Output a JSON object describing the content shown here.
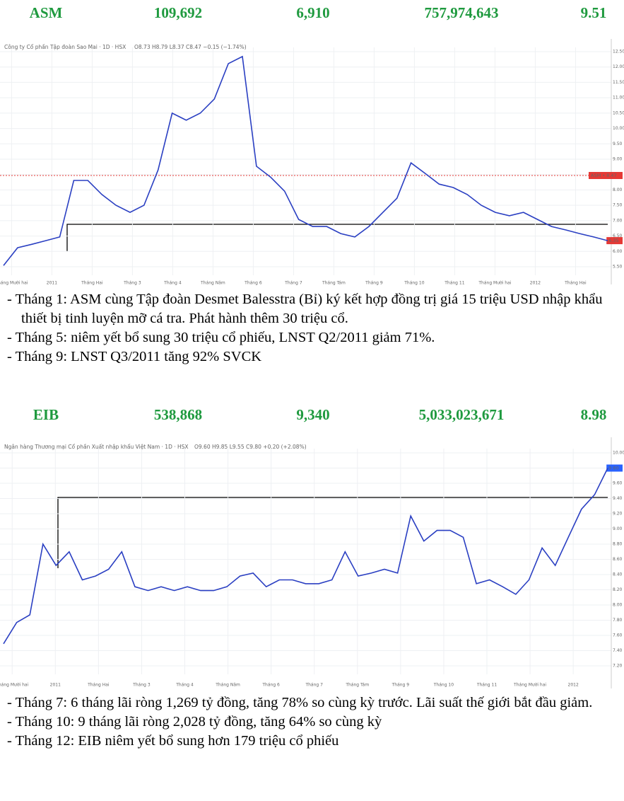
{
  "sections": [
    {
      "header": [
        "ASM",
        "109,692",
        "6,910",
        "757,974,643",
        "9.51"
      ],
      "chart": {
        "type": "line",
        "title": "Công ty Cổ phần Tập đoàn Sao Mai · 1D · HSX",
        "ohlc": "O8.73 H8.79 L8.37 C8.47 −0.15 (−1.74%)",
        "xlabels": [
          "Tháng Mười hai",
          "2011",
          "Tháng Hai",
          "Tháng 3",
          "Tháng 4",
          "Tháng Năm",
          "Tháng 6",
          "Tháng 7",
          "Tháng Tám",
          "Tháng 9",
          "Tháng 10",
          "Tháng 11",
          "Tháng Mười hai",
          "2012",
          "Tháng Hai"
        ],
        "series": [
          {
            "color": "#2a3fc2",
            "values": [
              5.54,
              6.12,
              6.23,
              6.35,
              6.47,
              8.31,
              8.31,
              7.85,
              7.5,
              7.27,
              7.5,
              8.65,
              10.5,
              10.27,
              10.5,
              10.96,
              12.11,
              12.34,
              8.77,
              8.42,
              7.96,
              7.04,
              6.81,
              6.81,
              6.58,
              6.47,
              6.81,
              7.27,
              7.73,
              8.88,
              8.54,
              8.19,
              8.08,
              7.85,
              7.5,
              7.27,
              7.16,
              7.27,
              7.04,
              6.81,
              6.7,
              6.58,
              6.47,
              6.35
            ]
          }
        ],
        "ylim": [
          5.5,
          12.5
        ],
        "yticks": [
          {
            "value": 5.5,
            "label": "5.50"
          },
          {
            "value": 6,
            "label": "6.00"
          },
          {
            "value": 6.5,
            "label": "6.50"
          },
          {
            "value": 7,
            "label": "7.00"
          },
          {
            "value": 7.5,
            "label": "7.50"
          },
          {
            "value": 8,
            "label": "8.00"
          },
          {
            "value": 8.5,
            "label": "8.50"
          },
          {
            "value": 9,
            "label": "9.00"
          },
          {
            "value": 9.5,
            "label": "9.50"
          },
          {
            "value": 10,
            "label": "10.00"
          },
          {
            "value": 10.5,
            "label": "10.50"
          },
          {
            "value": 11,
            "label": "11.00"
          },
          {
            "value": 11.5,
            "label": "11.50"
          },
          {
            "value": 12,
            "label": "12.00"
          },
          {
            "value": 12.5,
            "label": "12.50"
          }
        ],
        "markers": [
          {
            "value": 8.47,
            "label": "ASM • 8.47",
            "color": "#e53935"
          },
          {
            "value": 6.35,
            "label": "6.35",
            "color": "#e53935"
          }
        ]
      },
      "notes": [
        "- Tháng 1: ASM cùng Tập đoàn Desmet Balesstra (Bỉ) ký kết hợp đồng trị giá 15 triệu USD nhập khẩu thiết bị tinh luyện mỡ cá tra. Phát hành thêm 30 triệu cổ.",
        "- Tháng 5: niêm yết bổ sung 30 triệu cổ phiếu, LNST Q2/2011 giảm 71%.",
        "- Tháng 9: LNST Q3/2011 tăng 92% SVCK"
      ]
    },
    {
      "header": [
        "EIB",
        "538,868",
        "9,340",
        "5,033,023,671",
        "8.98"
      ],
      "chart": {
        "type": "line",
        "title": "Ngân hàng Thương mại Cổ phần Xuất nhập khẩu Việt Nam · 1D · HSX",
        "ohlc": "O9.60 H9.85 L9.55 C9.80 +0.20 (+2.08%)",
        "xlabels": [
          "Tháng Mười hai",
          "2011",
          "Tháng Hai",
          "Tháng 3",
          "Tháng 4",
          "Tháng Năm",
          "Tháng 6",
          "Tháng 7",
          "Tháng Tám",
          "Tháng 9",
          "Tháng 10",
          "Tháng 11",
          "Tháng Mười hai",
          "2012"
        ],
        "series": [
          {
            "color": "#2a3fc2",
            "values": [
              7.49,
              7.77,
              7.87,
              8.8,
              8.52,
              8.7,
              8.33,
              8.38,
              8.47,
              8.7,
              8.24,
              8.19,
              8.24,
              8.19,
              8.24,
              8.19,
              8.19,
              8.24,
              8.38,
              8.42,
              8.24,
              8.33,
              8.33,
              8.28,
              8.28,
              8.33,
              8.7,
              8.38,
              8.42,
              8.47,
              8.42,
              9.17,
              8.84,
              8.98,
              8.98,
              8.89,
              8.28,
              8.33,
              8.24,
              8.14,
              8.33,
              8.75,
              8.52,
              8.89,
              9.26,
              9.45,
              9.8
            ]
          }
        ],
        "ylim": [
          7.2,
          10
        ],
        "yticks": [
          {
            "value": 7.2,
            "label": "7.20"
          },
          {
            "value": 7.4,
            "label": "7.40"
          },
          {
            "value": 7.6,
            "label": "7.60"
          },
          {
            "value": 7.8,
            "label": "7.80"
          },
          {
            "value": 8,
            "label": "8.00"
          },
          {
            "value": 8.2,
            "label": "8.20"
          },
          {
            "value": 8.4,
            "label": "8.40"
          },
          {
            "value": 8.6,
            "label": "8.60"
          },
          {
            "value": 8.8,
            "label": "8.80"
          },
          {
            "value": 9,
            "label": "9.00"
          },
          {
            "value": 9.2,
            "label": "9.20"
          },
          {
            "value": 9.4,
            "label": "9.40"
          },
          {
            "value": 9.6,
            "label": "9.60"
          },
          {
            "value": 9.8,
            "label": "9.80"
          },
          {
            "value": 10,
            "label": "10.00"
          }
        ],
        "markers": [
          {
            "value": 9.8,
            "label": "9.80",
            "color": "#2962ff"
          }
        ]
      },
      "notes": [
        "- Tháng 7: 6 tháng lãi ròng 1,269 tỷ đồng, tăng 78% so cùng kỳ trước. Lãi suất thế giới bắt đầu giảm.",
        "- Tháng 10: 9 tháng lãi ròng 2,028 tỷ đồng, tăng 64% so cùng kỳ",
        "- Tháng 12: EIB niêm yết bổ sung hơn 179 triệu cổ phiếu"
      ]
    }
  ]
}
